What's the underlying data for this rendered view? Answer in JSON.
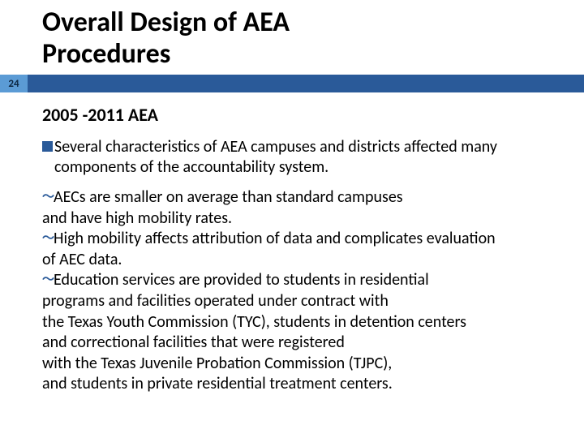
{
  "page_number": "24",
  "title_line1": "Overall Design of AEA",
  "title_line2": "Procedures",
  "subheading": "2005 -2011 AEA",
  "lead": {
    "bold_word": "Several",
    "rest_line1": " characteristics of AEA campuses and districts affected many",
    "line2": "components of the accountability system."
  },
  "items": [
    {
      "lines": [
        "AECs are smaller on average than standard campuses",
        "and have high mobility rates."
      ]
    },
    {
      "lines": [
        "High mobility affects attribution of data and complicates evaluation",
        "of AEC data."
      ]
    },
    {
      "lines": [
        "Education services are provided to students in residential",
        "programs and facilities operated under contract with",
        "the Texas Youth Commission (TYC), students in detention centers",
        "and correctional facilities that were registered",
        "with the Texas Juvenile Probation Commission (TJPC),",
        "and students in private residential treatment centers."
      ]
    }
  ],
  "colors": {
    "accent": "#2a5a99",
    "badge": "#5b9bd5"
  }
}
